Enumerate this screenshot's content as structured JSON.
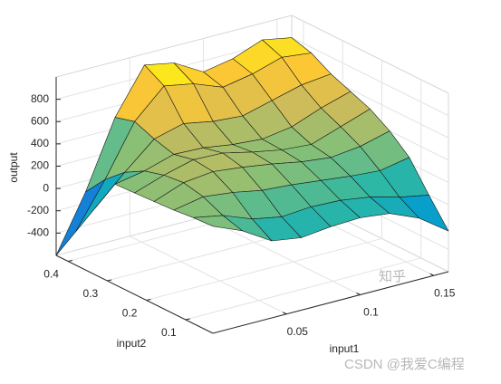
{
  "chart_data": {
    "type": "surface",
    "xlabel": "input1",
    "ylabel": "input2",
    "zlabel": "output",
    "x": [
      0,
      0.02,
      0.04,
      0.06,
      0.08,
      0.1,
      0.12,
      0.14,
      0.16
    ],
    "y": [
      0.03,
      0.08,
      0.13,
      0.18,
      0.23,
      0.28,
      0.33,
      0.38,
      0.43
    ],
    "z": [
      [
        360,
        250,
        90,
        50,
        80,
        90,
        60,
        -50,
        -235
      ],
      [
        350,
        300,
        200,
        150,
        170,
        160,
        120,
        50,
        0
      ],
      [
        330,
        380,
        350,
        300,
        280,
        250,
        220,
        200,
        250
      ],
      [
        320,
        420,
        450,
        420,
        380,
        330,
        300,
        330,
        400
      ],
      [
        310,
        400,
        470,
        460,
        400,
        350,
        330,
        420,
        510
      ],
      [
        300,
        350,
        430,
        420,
        380,
        360,
        400,
        500,
        580
      ],
      [
        0,
        250,
        480,
        550,
        500,
        480,
        550,
        620,
        650
      ],
      [
        -300,
        100,
        550,
        800,
        750,
        650,
        700,
        780,
        750
      ],
      [
        -600,
        -100,
        500,
        900,
        850,
        700,
        750,
        850,
        800
      ]
    ],
    "xlim": [
      0,
      0.16
    ],
    "ylim": [
      0.03,
      0.43
    ],
    "zlim": [
      -600,
      1000
    ],
    "xticks": [
      0.05,
      0.1,
      0.15
    ],
    "yticks": [
      0.1,
      0.2,
      0.3,
      0.4
    ],
    "zticks": [
      -400,
      -200,
      0,
      200,
      400,
      600,
      800
    ],
    "grid": true,
    "colormap": [
      "#352a87",
      "#0f5cdd",
      "#1481d6",
      "#06a4ca",
      "#2eb7a4",
      "#87bf77",
      "#d1bb59",
      "#fec832",
      "#f9fb0e"
    ],
    "edge_color": "#1a1a1a",
    "watermarks": [
      "知乎",
      "CSDN @我爱C编程"
    ]
  }
}
